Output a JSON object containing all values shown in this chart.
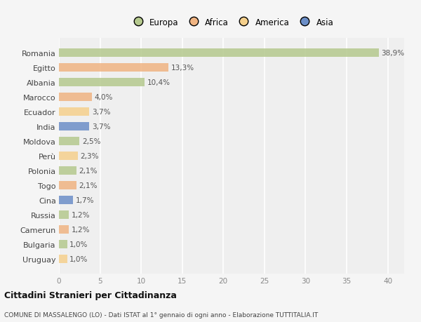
{
  "countries": [
    "Romania",
    "Egitto",
    "Albania",
    "Marocco",
    "Ecuador",
    "India",
    "Moldova",
    "Perù",
    "Polonia",
    "Togo",
    "Cina",
    "Russia",
    "Camerun",
    "Bulgaria",
    "Uruguay"
  ],
  "values": [
    38.9,
    13.3,
    10.4,
    4.0,
    3.7,
    3.7,
    2.5,
    2.3,
    2.1,
    2.1,
    1.7,
    1.2,
    1.2,
    1.0,
    1.0
  ],
  "labels": [
    "38,9%",
    "13,3%",
    "10,4%",
    "4,0%",
    "3,7%",
    "3,7%",
    "2,5%",
    "2,3%",
    "2,1%",
    "2,1%",
    "1,7%",
    "1,2%",
    "1,2%",
    "1,0%",
    "1,0%"
  ],
  "colors": [
    "#b5c98e",
    "#f0b482",
    "#b5c98e",
    "#f0b482",
    "#f5d08c",
    "#6b8ec7",
    "#b5c98e",
    "#f5d08c",
    "#b5c98e",
    "#f0b482",
    "#6b8ec7",
    "#b5c98e",
    "#f0b482",
    "#b5c98e",
    "#f5d08c"
  ],
  "legend_labels": [
    "Europa",
    "Africa",
    "America",
    "Asia"
  ],
  "legend_colors": [
    "#b5c98e",
    "#f0b482",
    "#f5d08c",
    "#6b8ec7"
  ],
  "title": "Cittadini Stranieri per Cittadinanza",
  "subtitle": "COMUNE DI MASSALENGO (LO) - Dati ISTAT al 1° gennaio di ogni anno - Elaborazione TUTTITALIA.IT",
  "xlim": [
    0,
    42
  ],
  "xticks": [
    0,
    5,
    10,
    15,
    20,
    25,
    30,
    35,
    40
  ],
  "background_color": "#f5f5f5",
  "bar_height": 0.55,
  "grid_color": "#ffffff",
  "axes_bg": "#efefef"
}
